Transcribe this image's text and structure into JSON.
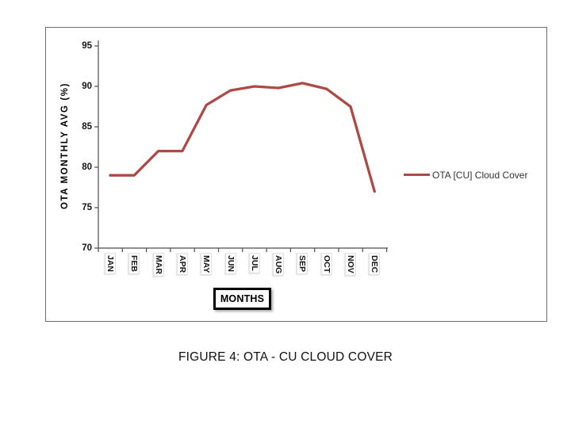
{
  "page": {
    "caption": "FIGURE 4: OTA - CU CLOUD COVER"
  },
  "chart_data": {
    "type": "line",
    "title": "",
    "categories": [
      "JAN",
      "FEB",
      "MAR",
      "APR",
      "MAY",
      "JUN",
      "JUL",
      "AUG",
      "SEP",
      "OCT",
      "NOV",
      "DEC"
    ],
    "series": [
      {
        "name": "OTA [CU] Cloud Cover",
        "color": "#AE4A46",
        "values": [
          79,
          79,
          82,
          82,
          87.7,
          89.5,
          90,
          89.8,
          90.4,
          89.7,
          87.5,
          77
        ]
      }
    ],
    "xlabel": "MONTHS",
    "ylabel": "OTA MONTHLY AVG (%)",
    "ylim": [
      70,
      95
    ],
    "yticks": [
      95,
      90,
      85,
      80,
      75,
      70
    ],
    "grid": false,
    "legend_position": "right-of-plot",
    "colors": {
      "axis": "#4d4d4d",
      "frame_border": "#6e6e6e"
    }
  }
}
